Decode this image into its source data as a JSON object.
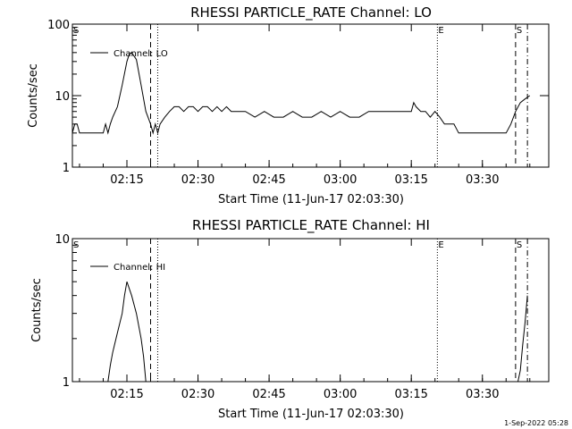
{
  "footer": {
    "timestamp": "1-Sep-2022 05:28"
  },
  "chart_data": [
    {
      "type": "line",
      "title": "RHESSI PARTICLE_RATE Channel: LO",
      "xlabel": "Start Time (11-Jun-17 02:03:30)",
      "ylabel": "Counts/sec",
      "yscale": "log",
      "xlim": [
        "02:03:30",
        "03:44:00"
      ],
      "ylim": [
        1,
        100
      ],
      "xticks": [
        "02:15",
        "02:30",
        "02:45",
        "03:00",
        "03:15",
        "03:30"
      ],
      "yticks": [
        "1",
        "10",
        "100"
      ],
      "legend": {
        "entries": [
          "Channel: LO"
        ],
        "placement": "top-left"
      },
      "markers": [
        {
          "label": "S",
          "time": "02:03:30",
          "style": "solid-edge"
        },
        {
          "label": "",
          "time": "02:20:00",
          "style": "dashed"
        },
        {
          "label": "",
          "time": "02:21:30",
          "style": "dotted"
        },
        {
          "label": "E",
          "time": "03:20:30",
          "style": "dotted"
        },
        {
          "label": "S",
          "time": "03:37:00",
          "style": "dashed"
        },
        {
          "label": "",
          "time": "03:39:30",
          "style": "dash-dot"
        }
      ],
      "series": [
        {
          "name": "Channel: LO",
          "x": [
            "02:03:30",
            "02:04:00",
            "02:04:30",
            "02:05:00",
            "02:05:30",
            "02:06:00",
            "02:07:00",
            "02:08:00",
            "02:09:00",
            "02:10:00",
            "02:10:30",
            "02:11:00",
            "02:11:30",
            "02:12:00",
            "02:13:00",
            "02:14:00",
            "02:15:00",
            "02:15:30",
            "02:16:00",
            "02:17:00",
            "02:18:00",
            "02:19:00",
            "02:20:00",
            "02:20:30",
            "02:21:00",
            "02:21:30",
            "02:22:00",
            "02:23:00",
            "02:24:00",
            "02:25:00",
            "02:26:00",
            "02:27:00",
            "02:28:00",
            "02:29:00",
            "02:30:00",
            "02:31:00",
            "02:32:00",
            "02:33:00",
            "02:34:00",
            "02:35:00",
            "02:36:00",
            "02:37:00",
            "02:38:00",
            "02:40:00",
            "02:42:00",
            "02:44:00",
            "02:46:00",
            "02:48:00",
            "02:50:00",
            "02:52:00",
            "02:54:00",
            "02:56:00",
            "02:58:00",
            "03:00:00",
            "03:02:00",
            "03:04:00",
            "03:06:00",
            "03:08:00",
            "03:10:00",
            "03:12:00",
            "03:14:00",
            "03:15:00",
            "03:15:30",
            "03:16:00",
            "03:17:00",
            "03:18:00",
            "03:19:00",
            "03:20:00",
            "03:21:00",
            "03:22:00",
            "03:23:00",
            "03:24:00",
            "03:25:00",
            "03:26:00",
            "03:27:00",
            "03:28:00",
            "03:30:00",
            "03:32:00",
            "03:34:00",
            "03:35:00",
            "03:36:00",
            "03:37:00",
            "03:38:00",
            "03:39:00",
            "03:40:00"
          ],
          "values": [
            3,
            4,
            4,
            3,
            3,
            3,
            3,
            3,
            3,
            3,
            4,
            3,
            4,
            5,
            7,
            14,
            30,
            38,
            40,
            32,
            14,
            6,
            4,
            3,
            4,
            3,
            4,
            5,
            6,
            7,
            7,
            6,
            7,
            7,
            6,
            7,
            7,
            6,
            7,
            6,
            7,
            6,
            6,
            6,
            5,
            6,
            5,
            5,
            6,
            5,
            5,
            6,
            5,
            6,
            5,
            5,
            6,
            6,
            6,
            6,
            6,
            6,
            8,
            7,
            6,
            6,
            5,
            6,
            5,
            4,
            4,
            4,
            3,
            3,
            3,
            3,
            3,
            3,
            3,
            3,
            4,
            6,
            8,
            9,
            10
          ]
        }
      ]
    },
    {
      "type": "line",
      "title": "RHESSI PARTICLE_RATE Channel: HI",
      "xlabel": "Start Time (11-Jun-17 02:03:30)",
      "ylabel": "Counts/sec",
      "yscale": "log",
      "xlim": [
        "02:03:30",
        "03:44:00"
      ],
      "ylim": [
        1,
        10
      ],
      "xticks": [
        "02:15",
        "02:30",
        "02:45",
        "03:00",
        "03:15",
        "03:30"
      ],
      "yticks": [
        "1",
        "10"
      ],
      "legend": {
        "entries": [
          "Channel: HI"
        ],
        "placement": "top-left"
      },
      "markers": [
        {
          "label": "S",
          "time": "02:03:30",
          "style": "solid-edge"
        },
        {
          "label": "",
          "time": "02:20:00",
          "style": "dashed"
        },
        {
          "label": "",
          "time": "02:21:30",
          "style": "dotted"
        },
        {
          "label": "E",
          "time": "03:20:30",
          "style": "dotted"
        },
        {
          "label": "S",
          "time": "03:37:00",
          "style": "dashed"
        },
        {
          "label": "",
          "time": "03:39:30",
          "style": "dash-dot"
        }
      ],
      "series": [
        {
          "name": "Channel: HI",
          "x": [
            "02:11:00",
            "02:11:30",
            "02:12:00",
            "02:13:00",
            "02:14:00",
            "02:14:30",
            "02:15:00",
            "02:16:00",
            "02:17:00",
            "02:18:00",
            "02:18:30",
            "02:19:00",
            "03:37:30",
            "03:38:00",
            "03:38:30",
            "03:39:00",
            "03:39:30"
          ],
          "values": [
            1,
            1.3,
            1.6,
            2.2,
            3,
            4,
            5,
            4,
            3,
            2,
            1.5,
            1,
            1,
            1.2,
            1.8,
            2.6,
            4
          ]
        }
      ]
    }
  ]
}
